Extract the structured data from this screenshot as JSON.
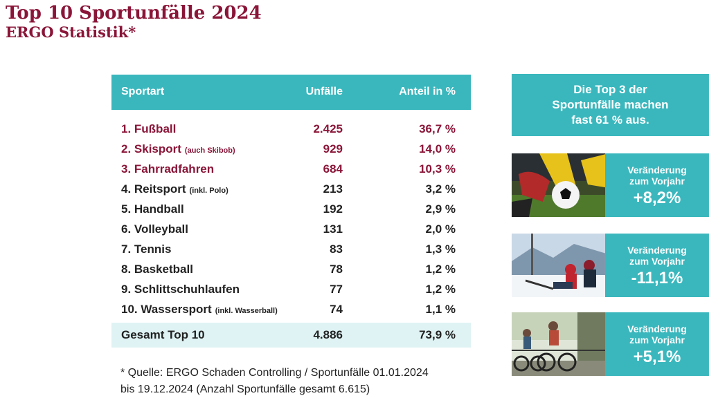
{
  "header": {
    "title": "Top 10 Sportunfälle 2024",
    "subtitle": "ERGO Statistik*"
  },
  "chart_data": {
    "type": "table",
    "columns": [
      "Sportart",
      "Unfälle",
      "Anteil in %"
    ],
    "rows": [
      {
        "name": "1. Fußball",
        "note": "",
        "count": "2.425",
        "share": "36,7 %",
        "highlight": true
      },
      {
        "name": "2. Skisport",
        "note": "(auch Skibob)",
        "count": "929",
        "share": "14,0 %",
        "highlight": true
      },
      {
        "name": "3. Fahrradfahren",
        "note": "",
        "count": "684",
        "share": "10,3 %",
        "highlight": true
      },
      {
        "name": "4. Reitsport",
        "note": "(inkl. Polo)",
        "count": "213",
        "share": "3,2 %",
        "highlight": false
      },
      {
        "name": "5. Handball",
        "note": "",
        "count": "192",
        "share": "2,9 %",
        "highlight": false
      },
      {
        "name": "6. Volleyball",
        "note": "",
        "count": "131",
        "share": "2,0 %",
        "highlight": false
      },
      {
        "name": "7. Tennis",
        "note": "",
        "count": "83",
        "share": "1,3 %",
        "highlight": false
      },
      {
        "name": "8. Basketball",
        "note": "",
        "count": "78",
        "share": "1,2 %",
        "highlight": false
      },
      {
        "name": "9. Schlittschuhlaufen",
        "note": "",
        "count": "77",
        "share": "1,2 %",
        "highlight": false
      },
      {
        "name": "10. Wassersport",
        "note": "(inkl. Wasserball)",
        "count": "74",
        "share": "1,1 %",
        "highlight": false
      }
    ],
    "total": {
      "name": "Gesamt Top 10",
      "count": "4.886",
      "share": "73,9 %"
    }
  },
  "footnote": {
    "line1": "* Quelle: ERGO Schaden Controlling / Sportunfälle 01.01.2024",
    "line2": "bis 19.12.2024 (Anzahl Sportunfälle gesamt 6.615)"
  },
  "callout": {
    "line1": "Die Top 3 der",
    "line2": "Sportunfälle machen",
    "line3": "fast 61 % aus."
  },
  "panels": [
    {
      "photo": "soccer-photo",
      "label1": "Veränderung",
      "label2": "zum Vorjahr",
      "value": "+8,2%"
    },
    {
      "photo": "ski-photo",
      "label1": "Veränderung",
      "label2": "zum Vorjahr",
      "value": "-11,1%"
    },
    {
      "photo": "cycling-photo",
      "label1": "Veränderung",
      "label2": "zum Vorjahr",
      "value": "+5,1%"
    }
  ],
  "colors": {
    "accent": "#3ab7bd",
    "brand": "#8a1538",
    "total_bg": "#dff3f4"
  }
}
